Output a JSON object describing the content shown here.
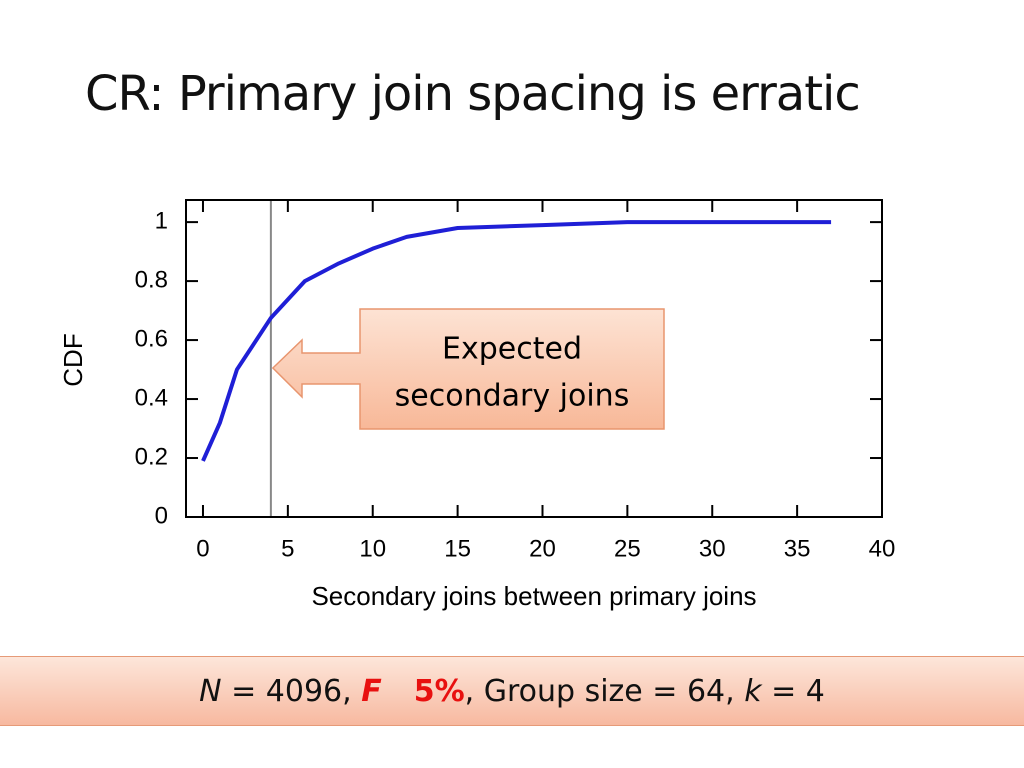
{
  "title": "CR: Primary join spacing is erratic",
  "chart_data": {
    "type": "line",
    "x_label": "Secondary joins between primary joins",
    "y_label": "CDF",
    "x": [
      0,
      1,
      2,
      4,
      6,
      8,
      10,
      12,
      15,
      20,
      25,
      37
    ],
    "series": [
      {
        "color": "#1f1fd6",
        "values": [
          0.19,
          0.32,
          0.5,
          0.675,
          0.8,
          0.86,
          0.91,
          0.95,
          0.98,
          0.99,
          1.0,
          1.0
        ]
      }
    ],
    "xlim": [
      -1,
      40
    ],
    "xticks": [
      0,
      5,
      10,
      15,
      20,
      25,
      30,
      35,
      40
    ],
    "ylim": [
      0,
      1.075
    ],
    "yticks": [
      0,
      0.2,
      0.4,
      0.6,
      0.8,
      1
    ],
    "reference_line": {
      "x": 4,
      "color": "#888888"
    },
    "annotation": [
      "Expected",
      "secondary joins"
    ]
  },
  "footer": [
    "N",
    " = 4096, ",
    "F",
    "5%",
    ", Group size = 64, ",
    "k",
    " = 4"
  ]
}
